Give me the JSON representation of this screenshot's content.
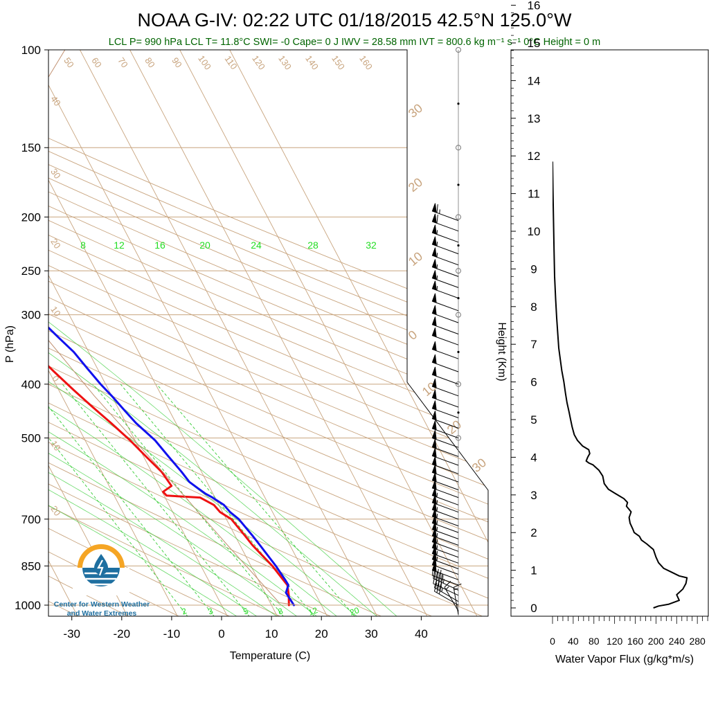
{
  "title": "NOAA G-IV: 02:22 UTC 01/18/2015  42.5°N 125.0°W",
  "subtitle": "LCL P= 990 hPa  LCL T= 11.8°C  SWI= -0  Cape= 0 J  IWV = 28.58 mm  IVT = 800.6 kg m⁻¹ s⁻¹  0°C Height = 0 m",
  "logo": {
    "line1": "Center for Western Weather",
    "line2": "and Water Extremes"
  },
  "colors": {
    "temperature": "#ee1111",
    "dewpoint": "#1111ee",
    "mixing_ratio": "#33cc33",
    "background_lines": "#c8a47e",
    "parcel": "#c09070",
    "subtitle": "#006400"
  },
  "chart_data": [
    {
      "type": "line",
      "name": "skew-t",
      "xlabel": "Temperature (C)",
      "ylabel": "P (hPa)",
      "x_ticks": [
        -30,
        -20,
        -10,
        0,
        10,
        20,
        30,
        40
      ],
      "y_ticks": [
        100,
        150,
        200,
        250,
        300,
        400,
        500,
        700,
        850,
        1000
      ],
      "ylim": [
        100,
        1050
      ],
      "y_scale": "log",
      "mixing_ratio_labels_top": [
        "8",
        "12",
        "16",
        "20",
        "24",
        "28",
        "32"
      ],
      "mixing_ratio_labels_bottom": [
        "2",
        "3",
        "5",
        "8",
        "12",
        "20"
      ],
      "dry_adiabat_labels": [
        "50",
        "60",
        "70",
        "80",
        "90",
        "100",
        "110",
        "120",
        "130",
        "140",
        "150",
        "160"
      ],
      "isotherm_labels_left": [
        "40",
        "30",
        "20",
        "10",
        "0",
        "10",
        "20"
      ],
      "isotherm_labels_right": [
        "30",
        "20",
        "10",
        "0",
        "10",
        "20",
        "30"
      ],
      "series": [
        {
          "key": "temperature",
          "points": [
            [
              13.5,
              1000
            ],
            [
              14.5,
              960
            ],
            [
              15.3,
              920
            ],
            [
              15.0,
              900
            ],
            [
              14.3,
              850
            ],
            [
              12.5,
              780
            ],
            [
              12,
              750
            ],
            [
              11,
              700
            ],
            [
              9.5,
              680
            ],
            [
              9.0,
              660
            ],
            [
              7.0,
              640
            ],
            [
              0.5,
              635
            ],
            [
              0.2,
              625
            ],
            [
              2.5,
              610
            ],
            [
              2.0,
              575
            ],
            [
              0.5,
              540
            ],
            [
              -1,
              505
            ],
            [
              -3,
              470
            ],
            [
              -5,
              440
            ],
            [
              -7,
              410
            ],
            [
              -9,
              380
            ],
            [
              -11,
              350
            ],
            [
              -13,
              330
            ],
            [
              -15,
              310
            ],
            [
              -17,
              293
            ],
            [
              -18,
              285
            ],
            [
              -19,
              270
            ],
            [
              -21,
              260
            ],
            [
              -23,
              250
            ],
            [
              -26,
              240
            ],
            [
              -28,
              230
            ],
            [
              -29,
              220
            ],
            [
              -28.5,
              210
            ],
            [
              -27.5,
              205
            ],
            [
              -27,
              200
            ]
          ]
        },
        {
          "key": "dewpoint",
          "points": [
            [
              14.5,
              1000
            ],
            [
              14.2,
              950
            ],
            [
              15.5,
              920
            ],
            [
              15.4,
              900
            ],
            [
              15.0,
              850
            ],
            [
              14,
              780
            ],
            [
              13.5,
              750
            ],
            [
              12.5,
              700
            ],
            [
              11.5,
              680
            ],
            [
              11.0,
              660
            ],
            [
              9.5,
              640
            ],
            [
              8.5,
              630
            ],
            [
              7.5,
              615
            ],
            [
              6.5,
              600
            ],
            [
              6.0,
              575
            ],
            [
              5.0,
              540
            ],
            [
              4.0,
              505
            ],
            [
              2.0,
              470
            ],
            [
              1.0,
              445
            ],
            [
              0.0,
              420
            ],
            [
              -1,
              400
            ],
            [
              -2,
              375
            ],
            [
              -3,
              350
            ],
            [
              -4.5,
              330
            ],
            [
              -6,
              310
            ],
            [
              -7,
              295
            ],
            [
              -9,
              275
            ],
            [
              -11,
              258
            ],
            [
              -13,
              245
            ],
            [
              -14,
              235
            ],
            [
              -14.5,
              225
            ],
            [
              -13.5,
              215
            ],
            [
              -11.5,
              205
            ],
            [
              -10.5,
              200
            ]
          ]
        },
        {
          "key": "parcel",
          "points": [
            [
              15.5,
              1000
            ],
            [
              11.8,
              990
            ],
            [
              7.5,
              780
            ],
            [
              3.0,
              600
            ],
            [
              -3.5,
              420
            ],
            [
              -7,
              330
            ],
            [
              -11,
              250
            ],
            [
              -13,
              220
            ],
            [
              -13.5,
              210
            ],
            [
              27,
              100
            ]
          ]
        }
      ],
      "wind_barbs": [
        {
          "p": 1040,
          "dir": 350,
          "spd": 15
        },
        {
          "p": 1025,
          "dir": 330,
          "spd": 15
        },
        {
          "p": 1000,
          "dir": 300,
          "spd": 30
        },
        {
          "p": 985,
          "dir": 300,
          "spd": 35
        },
        {
          "p": 960,
          "dir": 295,
          "spd": 40
        },
        {
          "p": 940,
          "dir": 295,
          "spd": 45
        },
        {
          "p": 920,
          "dir": 290,
          "spd": 45
        },
        {
          "p": 900,
          "dir": 290,
          "spd": 50
        },
        {
          "p": 880,
          "dir": 290,
          "spd": 50
        },
        {
          "p": 860,
          "dir": 290,
          "spd": 55
        },
        {
          "p": 840,
          "dir": 290,
          "spd": 55
        },
        {
          "p": 820,
          "dir": 290,
          "spd": 55
        },
        {
          "p": 800,
          "dir": 290,
          "spd": 55
        },
        {
          "p": 780,
          "dir": 290,
          "spd": 55
        },
        {
          "p": 760,
          "dir": 290,
          "spd": 55
        },
        {
          "p": 740,
          "dir": 290,
          "spd": 55
        },
        {
          "p": 720,
          "dir": 290,
          "spd": 55
        },
        {
          "p": 700,
          "dir": 290,
          "spd": 55
        },
        {
          "p": 680,
          "dir": 290,
          "spd": 55
        },
        {
          "p": 660,
          "dir": 290,
          "spd": 55
        },
        {
          "p": 640,
          "dir": 290,
          "spd": 50
        },
        {
          "p": 620,
          "dir": 290,
          "spd": 50
        },
        {
          "p": 600,
          "dir": 290,
          "spd": 50
        },
        {
          "p": 580,
          "dir": 290,
          "spd": 50
        },
        {
          "p": 560,
          "dir": 290,
          "spd": 50
        },
        {
          "p": 540,
          "dir": 290,
          "spd": 50
        },
        {
          "p": 520,
          "dir": 290,
          "spd": 50
        },
        {
          "p": 500,
          "dir": 290,
          "spd": 50
        },
        {
          "p": 480,
          "dir": 290,
          "spd": 50
        },
        {
          "p": 460,
          "dir": 290,
          "spd": 50
        },
        {
          "p": 440,
          "dir": 290,
          "spd": 50
        },
        {
          "p": 420,
          "dir": 290,
          "spd": 50
        },
        {
          "p": 400,
          "dir": 290,
          "spd": 50
        },
        {
          "p": 380,
          "dir": 290,
          "spd": 50
        },
        {
          "p": 360,
          "dir": 290,
          "spd": 50
        },
        {
          "p": 340,
          "dir": 290,
          "spd": 50
        },
        {
          "p": 325,
          "dir": 290,
          "spd": 50
        },
        {
          "p": 310,
          "dir": 290,
          "spd": 50
        },
        {
          "p": 295,
          "dir": 290,
          "spd": 50
        },
        {
          "p": 280,
          "dir": 290,
          "spd": 55
        },
        {
          "p": 268,
          "dir": 290,
          "spd": 55
        },
        {
          "p": 256,
          "dir": 290,
          "spd": 55
        },
        {
          "p": 244,
          "dir": 290,
          "spd": 55
        },
        {
          "p": 233,
          "dir": 290,
          "spd": 55
        },
        {
          "p": 222,
          "dir": 290,
          "spd": 55
        },
        {
          "p": 212,
          "dir": 290,
          "spd": 60
        },
        {
          "p": 203,
          "dir": 290,
          "spd": 65
        }
      ]
    },
    {
      "type": "line",
      "name": "water-vapor-flux",
      "xlabel": "Water Vapor Flux (g/kg*m/s)",
      "ylabel": "Height (Km)",
      "x_ticks": [
        0,
        40,
        80,
        120,
        160,
        200,
        240,
        280
      ],
      "xlim": [
        0,
        280
      ],
      "y_ticks": [
        0,
        1,
        2,
        3,
        4,
        5,
        6,
        7,
        8,
        9,
        10,
        11,
        12,
        13,
        14,
        15,
        16
      ],
      "ylim": [
        -0.2,
        16.3
      ],
      "points": [
        [
          195,
          0.0
        ],
        [
          205,
          0.05
        ],
        [
          225,
          0.1
        ],
        [
          245,
          0.2
        ],
        [
          240,
          0.35
        ],
        [
          252,
          0.5
        ],
        [
          258,
          0.65
        ],
        [
          260,
          0.8
        ],
        [
          245,
          0.85
        ],
        [
          230,
          0.95
        ],
        [
          215,
          1.05
        ],
        [
          205,
          1.2
        ],
        [
          200,
          1.35
        ],
        [
          195,
          1.55
        ],
        [
          182,
          1.7
        ],
        [
          172,
          1.8
        ],
        [
          168,
          1.9
        ],
        [
          158,
          2.0
        ],
        [
          155,
          2.1
        ],
        [
          150,
          2.25
        ],
        [
          148,
          2.4
        ],
        [
          152,
          2.55
        ],
        [
          143,
          2.7
        ],
        [
          145,
          2.8
        ],
        [
          138,
          2.9
        ],
        [
          132,
          2.95
        ],
        [
          120,
          3.05
        ],
        [
          108,
          3.15
        ],
        [
          100,
          3.3
        ],
        [
          97,
          3.5
        ],
        [
          90,
          3.65
        ],
        [
          78,
          3.8
        ],
        [
          70,
          3.85
        ],
        [
          65,
          3.9
        ],
        [
          68,
          4.0
        ],
        [
          72,
          4.1
        ],
        [
          70,
          4.2
        ],
        [
          58,
          4.3
        ],
        [
          48,
          4.45
        ],
        [
          42,
          4.6
        ],
        [
          38,
          4.8
        ],
        [
          35,
          5.0
        ],
        [
          32,
          5.2
        ],
        [
          28,
          5.45
        ],
        [
          25,
          5.7
        ],
        [
          22,
          6.0
        ],
        [
          18,
          6.3
        ],
        [
          15,
          6.6
        ],
        [
          12,
          6.9
        ],
        [
          10,
          7.3
        ],
        [
          8,
          7.7
        ],
        [
          6,
          8.2
        ],
        [
          4,
          8.8
        ],
        [
          3,
          9.5
        ],
        [
          2,
          10.2
        ],
        [
          1,
          11.0
        ],
        [
          0,
          11.85
        ]
      ]
    }
  ]
}
